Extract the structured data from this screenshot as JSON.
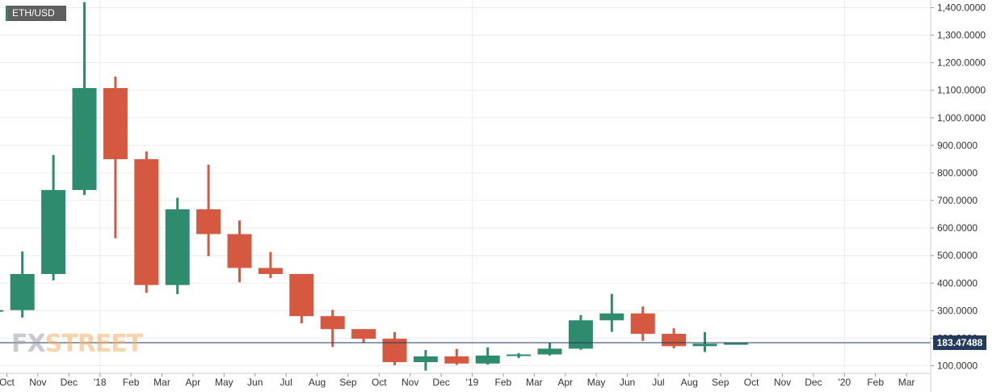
{
  "header": {
    "symbol": "ETH/USD"
  },
  "watermark": {
    "brand_a": "FX",
    "brand_b": "STREET"
  },
  "chart_data": {
    "type": "candlestick",
    "symbol": "ETH/USD",
    "title": "",
    "xlabel": "",
    "ylabel": "",
    "ylim": [
      80,
      1420
    ],
    "grid": true,
    "colors": {
      "up": "#2e8b6e",
      "down": "#d55840",
      "last_price": "#233a5c",
      "grid": "#ececec"
    },
    "last_price": 183.47488,
    "last_price_label": "183.47488",
    "y_ticks": [
      {
        "value": 100,
        "label": "100.0000"
      },
      {
        "value": 200,
        "label": "200.0000"
      },
      {
        "value": 300,
        "label": "300.0000"
      },
      {
        "value": 400,
        "label": "400.0000"
      },
      {
        "value": 500,
        "label": "500.0000"
      },
      {
        "value": 600,
        "label": "600.0000"
      },
      {
        "value": 700,
        "label": "700.0000"
      },
      {
        "value": 800,
        "label": "800.0000"
      },
      {
        "value": 900,
        "label": "900.0000"
      },
      {
        "value": 1000,
        "label": "1,000.0000"
      },
      {
        "value": 1100,
        "label": "1,100.0000"
      },
      {
        "value": 1200,
        "label": "1,200.0000"
      },
      {
        "value": 1300,
        "label": "1,300.0000"
      },
      {
        "value": 1400,
        "label": "1,400.0000"
      }
    ],
    "x_labels": [
      "Oct",
      "Nov",
      "Dec",
      "'18",
      "Feb",
      "Mar",
      "Apr",
      "May",
      "Jun",
      "Jul",
      "Aug",
      "Sep",
      "Oct",
      "Nov",
      "Dec",
      "'19",
      "Feb",
      "Mar",
      "Apr",
      "May",
      "Jun",
      "Jul",
      "Aug",
      "Sep",
      "Oct",
      "Nov",
      "Dec",
      "'20",
      "Feb",
      "Mar"
    ],
    "candles": [
      {
        "month": "2017-09",
        "open": 300,
        "high": 350,
        "low": 270,
        "close": 302
      },
      {
        "month": "2017-10",
        "open": 302,
        "high": 515,
        "low": 275,
        "close": 433
      },
      {
        "month": "2017-11",
        "open": 433,
        "high": 865,
        "low": 410,
        "close": 738
      },
      {
        "month": "2017-12",
        "open": 738,
        "high": 1420,
        "low": 720,
        "close": 1108
      },
      {
        "month": "2018-01",
        "open": 1108,
        "high": 1150,
        "low": 563,
        "close": 850
      },
      {
        "month": "2018-02",
        "open": 850,
        "high": 878,
        "low": 365,
        "close": 393
      },
      {
        "month": "2018-03",
        "open": 393,
        "high": 710,
        "low": 360,
        "close": 668
      },
      {
        "month": "2018-04",
        "open": 668,
        "high": 830,
        "low": 498,
        "close": 578
      },
      {
        "month": "2018-05",
        "open": 578,
        "high": 628,
        "low": 403,
        "close": 455
      },
      {
        "month": "2018-06",
        "open": 455,
        "high": 513,
        "low": 418,
        "close": 433
      },
      {
        "month": "2018-07",
        "open": 433,
        "high": 433,
        "low": 254,
        "close": 280
      },
      {
        "month": "2018-08",
        "open": 280,
        "high": 303,
        "low": 168,
        "close": 233
      },
      {
        "month": "2018-09",
        "open": 233,
        "high": 233,
        "low": 184,
        "close": 198
      },
      {
        "month": "2018-10",
        "open": 198,
        "high": 222,
        "low": 102,
        "close": 113
      },
      {
        "month": "2018-11",
        "open": 113,
        "high": 157,
        "low": 82,
        "close": 134
      },
      {
        "month": "2018-12",
        "open": 134,
        "high": 161,
        "low": 103,
        "close": 108
      },
      {
        "month": "2018-13",
        "open": 108,
        "high": 167,
        "low": 104,
        "close": 137
      },
      {
        "month": "2019-02",
        "open": 137,
        "high": 146,
        "low": 128,
        "close": 141
      },
      {
        "month": "2019-03",
        "open": 141,
        "high": 185,
        "low": 137,
        "close": 162
      },
      {
        "month": "2019-04",
        "open": 162,
        "high": 284,
        "low": 158,
        "close": 265
      },
      {
        "month": "2019-05",
        "open": 265,
        "high": 361,
        "low": 223,
        "close": 290
      },
      {
        "month": "2019-06",
        "open": 290,
        "high": 315,
        "low": 190,
        "close": 216
      },
      {
        "month": "2019-07",
        "open": 216,
        "high": 236,
        "low": 163,
        "close": 171
      },
      {
        "month": "2019-08",
        "open": 171,
        "high": 222,
        "low": 150,
        "close": 180
      },
      {
        "month": "2019-09",
        "open": 180,
        "high": 185,
        "low": 176,
        "close": 182
      }
    ]
  }
}
